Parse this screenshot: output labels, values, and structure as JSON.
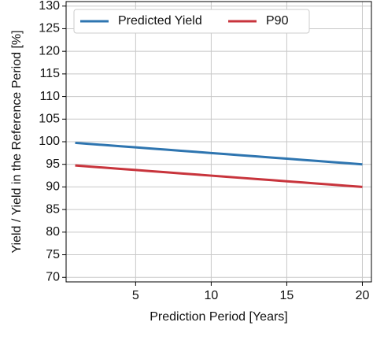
{
  "chart_data": {
    "type": "line",
    "x_label": "Prediction Period [Years]",
    "y_label": "Yield / Yield in the Reference Period [%]",
    "x": [
      1,
      2,
      3,
      4,
      5,
      6,
      7,
      8,
      9,
      10,
      11,
      12,
      13,
      14,
      15,
      16,
      17,
      18,
      19,
      20
    ],
    "series": [
      {
        "name": "Predicted Yield",
        "color": "#2e75b0",
        "values": [
          99.75,
          99.5,
          99.25,
          99,
          98.75,
          98.5,
          98.25,
          98,
          97.75,
          97.5,
          97.25,
          97,
          96.75,
          96.5,
          96.25,
          96,
          95.75,
          95.5,
          95.25,
          95
        ]
      },
      {
        "name": "P90",
        "color": "#c8343c",
        "values": [
          94.75,
          94.5,
          94.25,
          94,
          93.75,
          93.5,
          93.25,
          93,
          92.75,
          92.5,
          92.25,
          92,
          91.75,
          91.5,
          91.25,
          91,
          90.75,
          90.5,
          90.25,
          90
        ]
      }
    ],
    "xlim": [
      0.4,
      20.6
    ],
    "xticks": [
      5,
      10,
      15,
      20
    ],
    "ylim": [
      69,
      131
    ],
    "yticks": [
      70,
      75,
      80,
      85,
      90,
      95,
      100,
      105,
      110,
      115,
      120,
      125,
      130
    ],
    "grid": true,
    "legend": "top"
  }
}
